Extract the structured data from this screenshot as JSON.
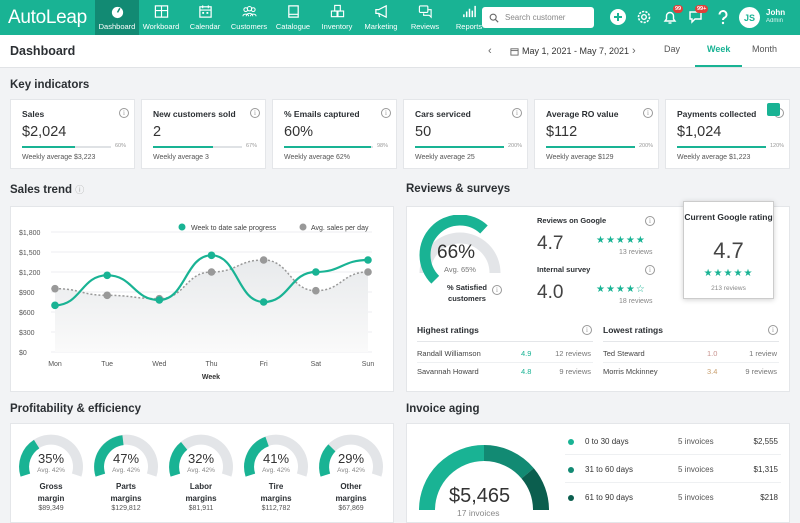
{
  "brand": {
    "logo": "AutoLeap",
    "accent": "#19b394"
  },
  "nav": [
    {
      "label": "Dashboard",
      "icon": "dashboard-icon"
    },
    {
      "label": "Workboard",
      "icon": "workboard-icon"
    },
    {
      "label": "Calendar",
      "icon": "calendar-icon"
    },
    {
      "label": "Customers",
      "icon": "customers-icon"
    },
    {
      "label": "Catalogue",
      "icon": "catalogue-icon"
    },
    {
      "label": "Inventory",
      "icon": "inventory-icon"
    },
    {
      "label": "Marketing",
      "icon": "marketing-icon"
    },
    {
      "label": "Reviews",
      "icon": "reviews-icon"
    },
    {
      "label": "Reports",
      "icon": "reports-icon"
    }
  ],
  "search": {
    "placeholder": "Search customer"
  },
  "badges": {
    "notifications": "99",
    "messages": "99+"
  },
  "user": {
    "initials": "JS",
    "name": "John",
    "role": "Admin"
  },
  "header": {
    "title": "Dashboard",
    "date_range": "May 1, 2021 - May 7, 2021",
    "tabs": [
      "Day",
      "Week",
      "Month"
    ],
    "active_tab": "Week"
  },
  "key_indicators": {
    "title": "Key indicators",
    "cards": [
      {
        "label": "Sales",
        "value": "$2,024",
        "pct_label": "60%",
        "fill": 0.6,
        "weekly": "Weekly average $3,223"
      },
      {
        "label": "New customers sold",
        "value": "2",
        "pct_label": "67%",
        "fill": 0.67,
        "weekly": "Weekly average 3"
      },
      {
        "label": "% Emails captured",
        "value": "60%",
        "pct_label": "98%",
        "fill": 0.98,
        "weekly": "Weekly average 62%"
      },
      {
        "label": "Cars serviced",
        "value": "50",
        "pct_label": "200%",
        "fill": 1.0,
        "weekly": "Weekly average 25"
      },
      {
        "label": "Average RO value",
        "value": "$112",
        "pct_label": "200%",
        "fill": 1.0,
        "weekly": "Weekly average $129"
      },
      {
        "label": "Payments collected",
        "value": "$1,024",
        "pct_label": "120%",
        "fill": 1.0,
        "weekly": "Weekly average $1,223"
      }
    ]
  },
  "sales_trend": {
    "title": "Sales trend"
  },
  "chart_data": {
    "type": "line",
    "categories": [
      "Mon",
      "Tue",
      "Wed",
      "Thu",
      "Fri",
      "Sat",
      "Sun"
    ],
    "xlabel": "Week",
    "y_ticks": [
      "$0",
      "$300",
      "$600",
      "$900",
      "$1,200",
      "$1,500",
      "$1,800"
    ],
    "ylim": [
      0,
      1800
    ],
    "legend": "top",
    "series": [
      {
        "name": "Week to date sale progress",
        "color": "#19b394",
        "values": [
          700,
          1150,
          780,
          1450,
          750,
          1200,
          1380
        ]
      },
      {
        "name": "Avg. sales per day",
        "color": "#999999",
        "values": [
          950,
          850,
          800,
          1200,
          1380,
          920,
          1200
        ]
      }
    ]
  },
  "reviews": {
    "title": "Reviews & surveys",
    "satisfied": {
      "value": "66%",
      "avg": "Avg. 65%",
      "label": "% Satisfied customers",
      "fraction": 0.66
    },
    "google": {
      "label": "Reviews on Google",
      "rating": "4.7",
      "stars": "★★★★★",
      "count": "13 reviews"
    },
    "survey": {
      "label": "Internal survey",
      "rating": "4.0",
      "stars": "★★★★☆",
      "count": "18 reviews"
    },
    "current_google": {
      "title": "Current Google rating",
      "rating": "4.7",
      "stars": "★★★★★",
      "count": "213 reviews"
    },
    "highest": {
      "title": "Highest ratings",
      "rows": [
        {
          "name": "Randall Williamson",
          "rating": "4.9",
          "reviews": "12 reviews"
        },
        {
          "name": "Savannah Howard",
          "rating": "4.8",
          "reviews": "9 reviews"
        }
      ]
    },
    "lowest": {
      "title": "Lowest ratings",
      "rows": [
        {
          "name": "Ted Steward",
          "rating": "1.0",
          "reviews": "1 review"
        },
        {
          "name": "Morris Mckinney",
          "rating": "3.4",
          "reviews": "9 reviews"
        }
      ]
    }
  },
  "profitability": {
    "title": "Profitability & efficiency",
    "items": [
      {
        "value": "35%",
        "avg": "Avg. 42%",
        "label": "Gross margin",
        "amount": "$89,349",
        "fraction": 0.35
      },
      {
        "value": "47%",
        "avg": "Avg. 42%",
        "label": "Parts margins",
        "amount": "$129,812",
        "fraction": 0.47
      },
      {
        "value": "32%",
        "avg": "Avg. 42%",
        "label": "Labor margins",
        "amount": "$81,911",
        "fraction": 0.32
      },
      {
        "value": "41%",
        "avg": "Avg. 42%",
        "label": "Tire margins",
        "amount": "$112,782",
        "fraction": 0.41
      },
      {
        "value": "29%",
        "avg": "Avg. 42%",
        "label": "Other margins",
        "amount": "$67,869",
        "fraction": 0.29
      }
    ]
  },
  "invoice_aging": {
    "title": "Invoice aging",
    "total": "$5,465",
    "count": "17 invoices",
    "rows": [
      {
        "range": "0 to 30 days",
        "invoices": "5 invoices",
        "amount": "$2,555",
        "color": "#19b394"
      },
      {
        "range": "31 to 60 days",
        "invoices": "5 invoices",
        "amount": "$1,315",
        "color": "#128a73"
      },
      {
        "range": "61 to 90 days",
        "invoices": "5 invoices",
        "amount": "$218",
        "color": "#0b5e4e"
      }
    ]
  }
}
